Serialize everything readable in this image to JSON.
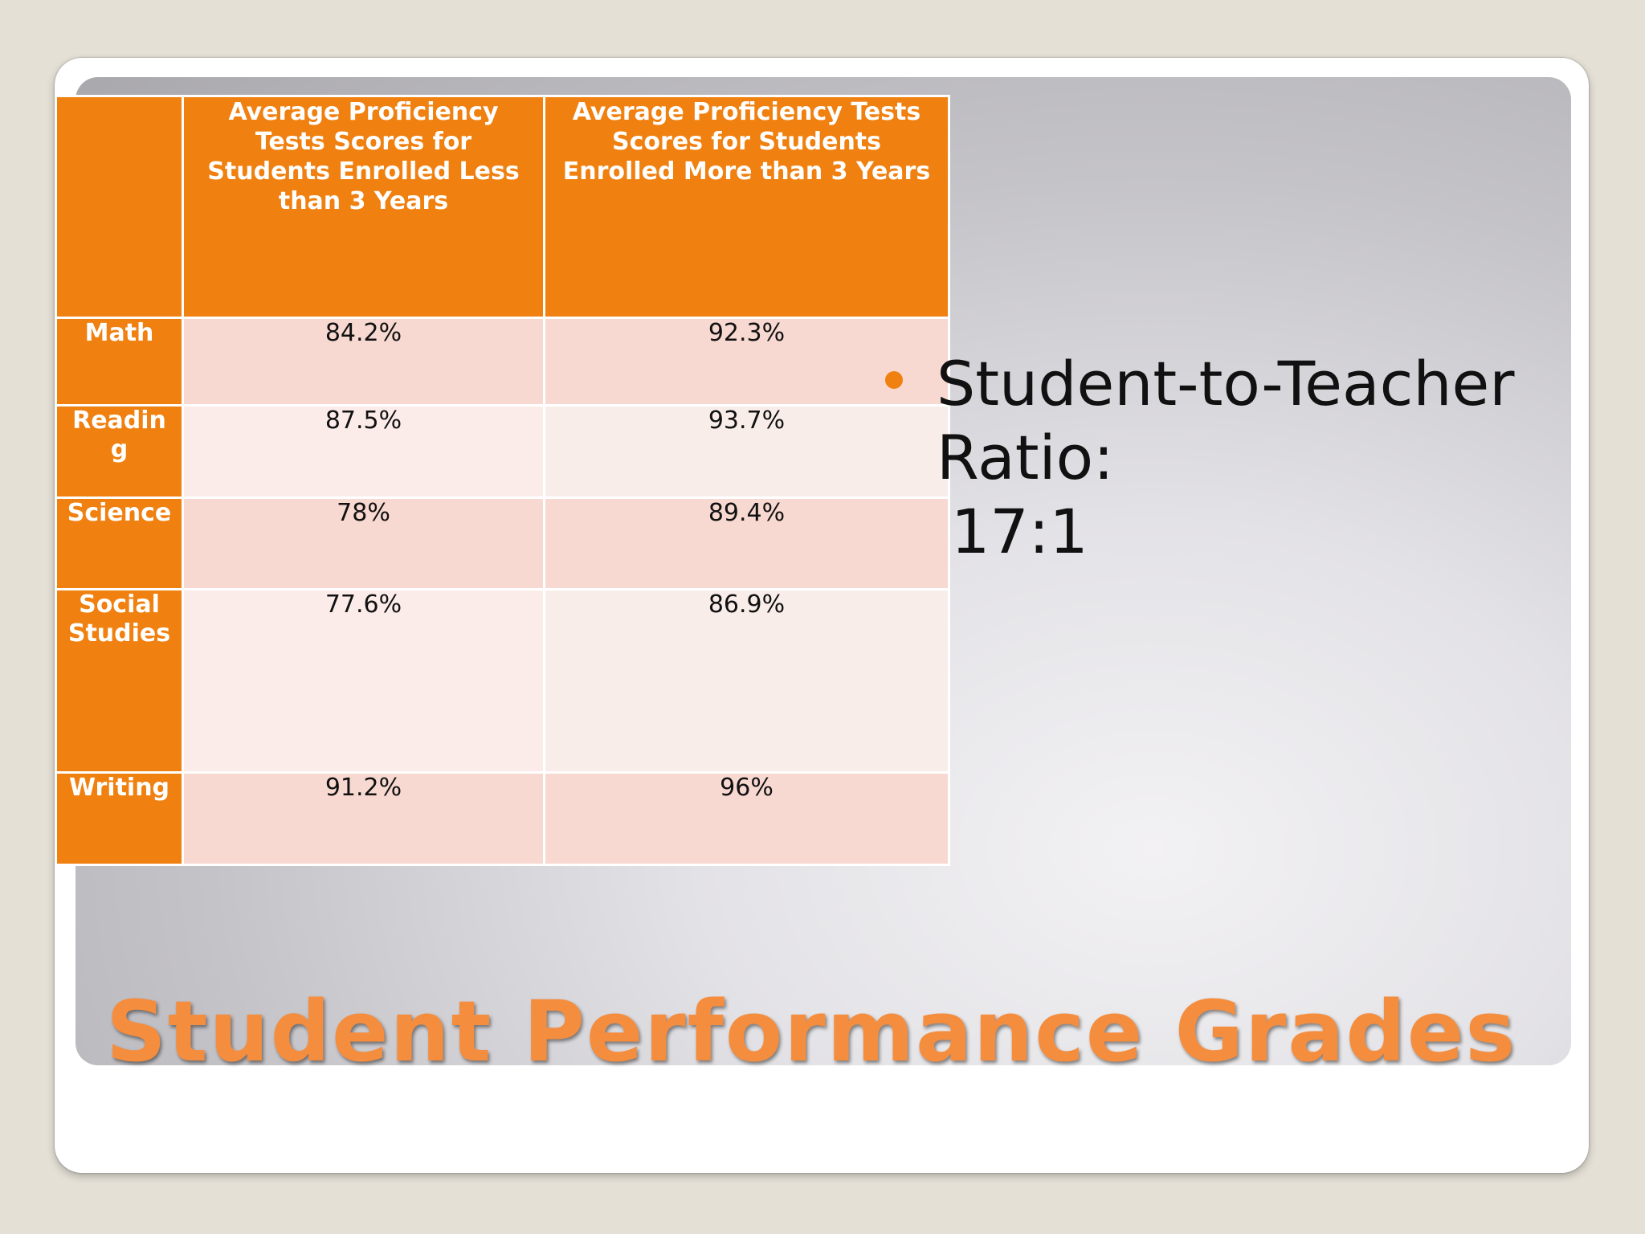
{
  "slide": {
    "title": "Student Performance Grades",
    "bullet": {
      "line1": "Student-to-Teacher",
      "line2": "Ratio:",
      "line3": "17:1"
    },
    "colors": {
      "accent": "#f0800f",
      "title": "#f58d3e",
      "row_odd": "#f8d9d1",
      "row_even": "#fbecea"
    }
  },
  "table": {
    "columns": [
      "",
      "Average Proficiency Tests Scores for Students Enrolled Less than 3 Years",
      "Average Proficiency Tests Scores for Students Enrolled More than 3 Years"
    ],
    "rows": [
      {
        "subject": "Math",
        "less": "84.2%",
        "more": "92.3%"
      },
      {
        "subject": "Readin g",
        "less": "87.5%",
        "more": "93.7%"
      },
      {
        "subject": "Science",
        "less": "78%",
        "more": "89.4%"
      },
      {
        "subject": "Social Studies",
        "less": "77.6%",
        "more": "86.9%"
      },
      {
        "subject": "Writing",
        "less": "91.2%",
        "more": "96%"
      }
    ]
  }
}
